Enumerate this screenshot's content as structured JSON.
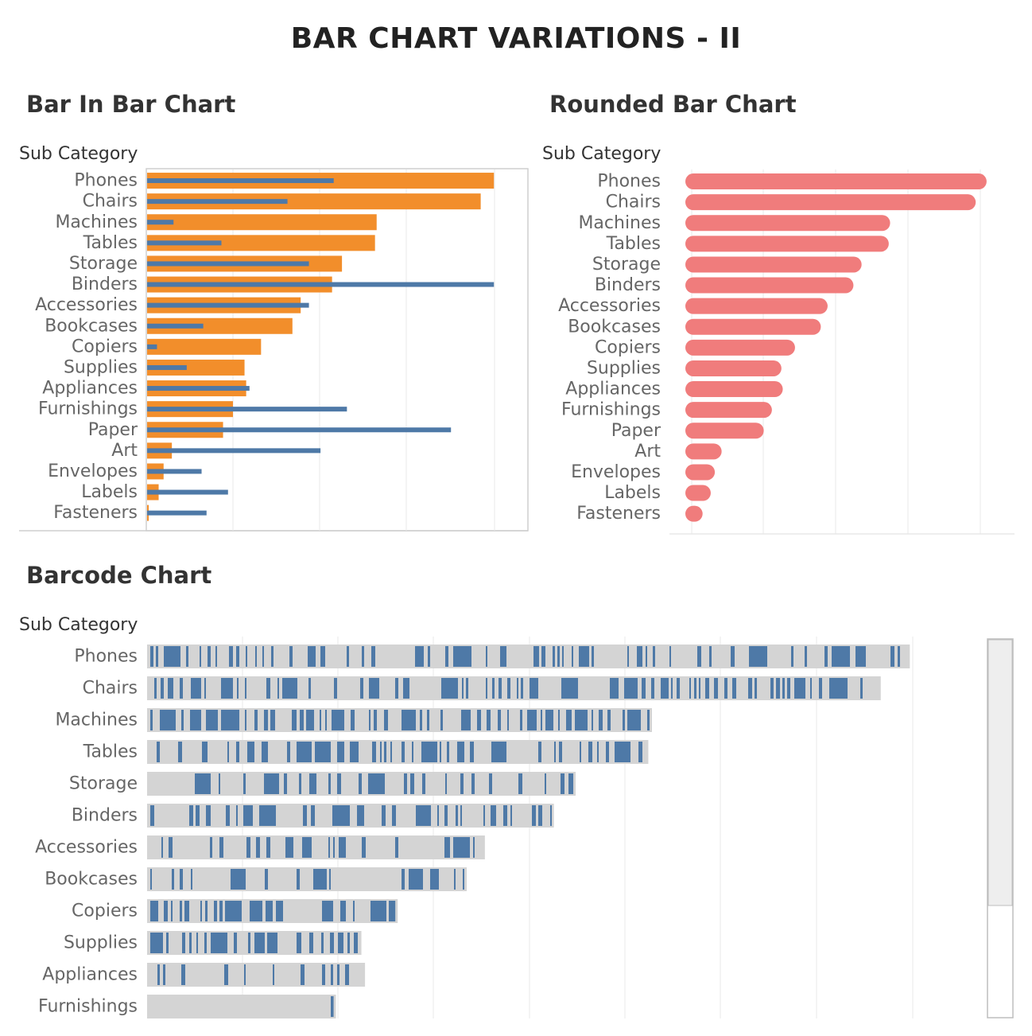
{
  "page_title": "BAR CHART VARIATIONS - II",
  "colors": {
    "orange": "#f28e2b",
    "steel_blue": "#4e79a7",
    "coral": "#f07c7c",
    "barcode_track": "#d4d4d4",
    "gridline": "#e8e8e8",
    "label_text": "#666666"
  },
  "chart_data": [
    {
      "type": "bar",
      "title": "Bar In Bar Chart",
      "ylabel": "Sub Category",
      "xlabel": "",
      "orientation": "horizontal",
      "xlim": [
        0,
        220
      ],
      "grid": true,
      "categories": [
        "Phones",
        "Chairs",
        "Machines",
        "Tables",
        "Storage",
        "Binders",
        "Accessories",
        "Bookcases",
        "Copiers",
        "Supplies",
        "Appliances",
        "Furnishings",
        "Paper",
        "Art",
        "Envelopes",
        "Labels",
        "Fasteners"
      ],
      "series": [
        {
          "values": [
            210,
            202,
            139,
            138,
            118,
            112,
            93,
            88,
            69,
            59,
            60,
            52,
            46,
            15,
            10,
            7,
            1
          ]
        },
        {
          "values": [
            113,
            85,
            16,
            45,
            98,
            210,
            98,
            34,
            6,
            24,
            62,
            121,
            184,
            105,
            33,
            49,
            36
          ]
        }
      ]
    },
    {
      "type": "bar",
      "title": "Rounded Bar Chart",
      "ylabel": "Sub Category",
      "xlabel": "",
      "orientation": "horizontal",
      "xlim": [
        0,
        220
      ],
      "grid": true,
      "categories": [
        "Phones",
        "Chairs",
        "Machines",
        "Tables",
        "Storage",
        "Binders",
        "Accessories",
        "Bookcases",
        "Copiers",
        "Supplies",
        "Appliances",
        "Furnishings",
        "Paper",
        "Art",
        "Envelopes",
        "Labels",
        "Fasteners"
      ],
      "values": [
        210,
        202,
        139,
        138,
        118,
        112,
        93,
        88,
        69,
        59,
        60,
        52,
        46,
        15,
        10,
        7,
        1
      ]
    },
    {
      "type": "barcode",
      "title": "Barcode Chart",
      "ylabel": "Sub Category",
      "xlabel": "",
      "xlim": [
        0,
        220
      ],
      "grid": true,
      "categories": [
        "Phones",
        "Chairs",
        "Machines",
        "Tables",
        "Storage",
        "Binders",
        "Accessories",
        "Bookcases",
        "Copiers",
        "Supplies",
        "Appliances",
        "Furnishings"
      ],
      "values": [
        210,
        202,
        139,
        138,
        118,
        112,
        93,
        88,
        69,
        59,
        60,
        52
      ]
    }
  ]
}
